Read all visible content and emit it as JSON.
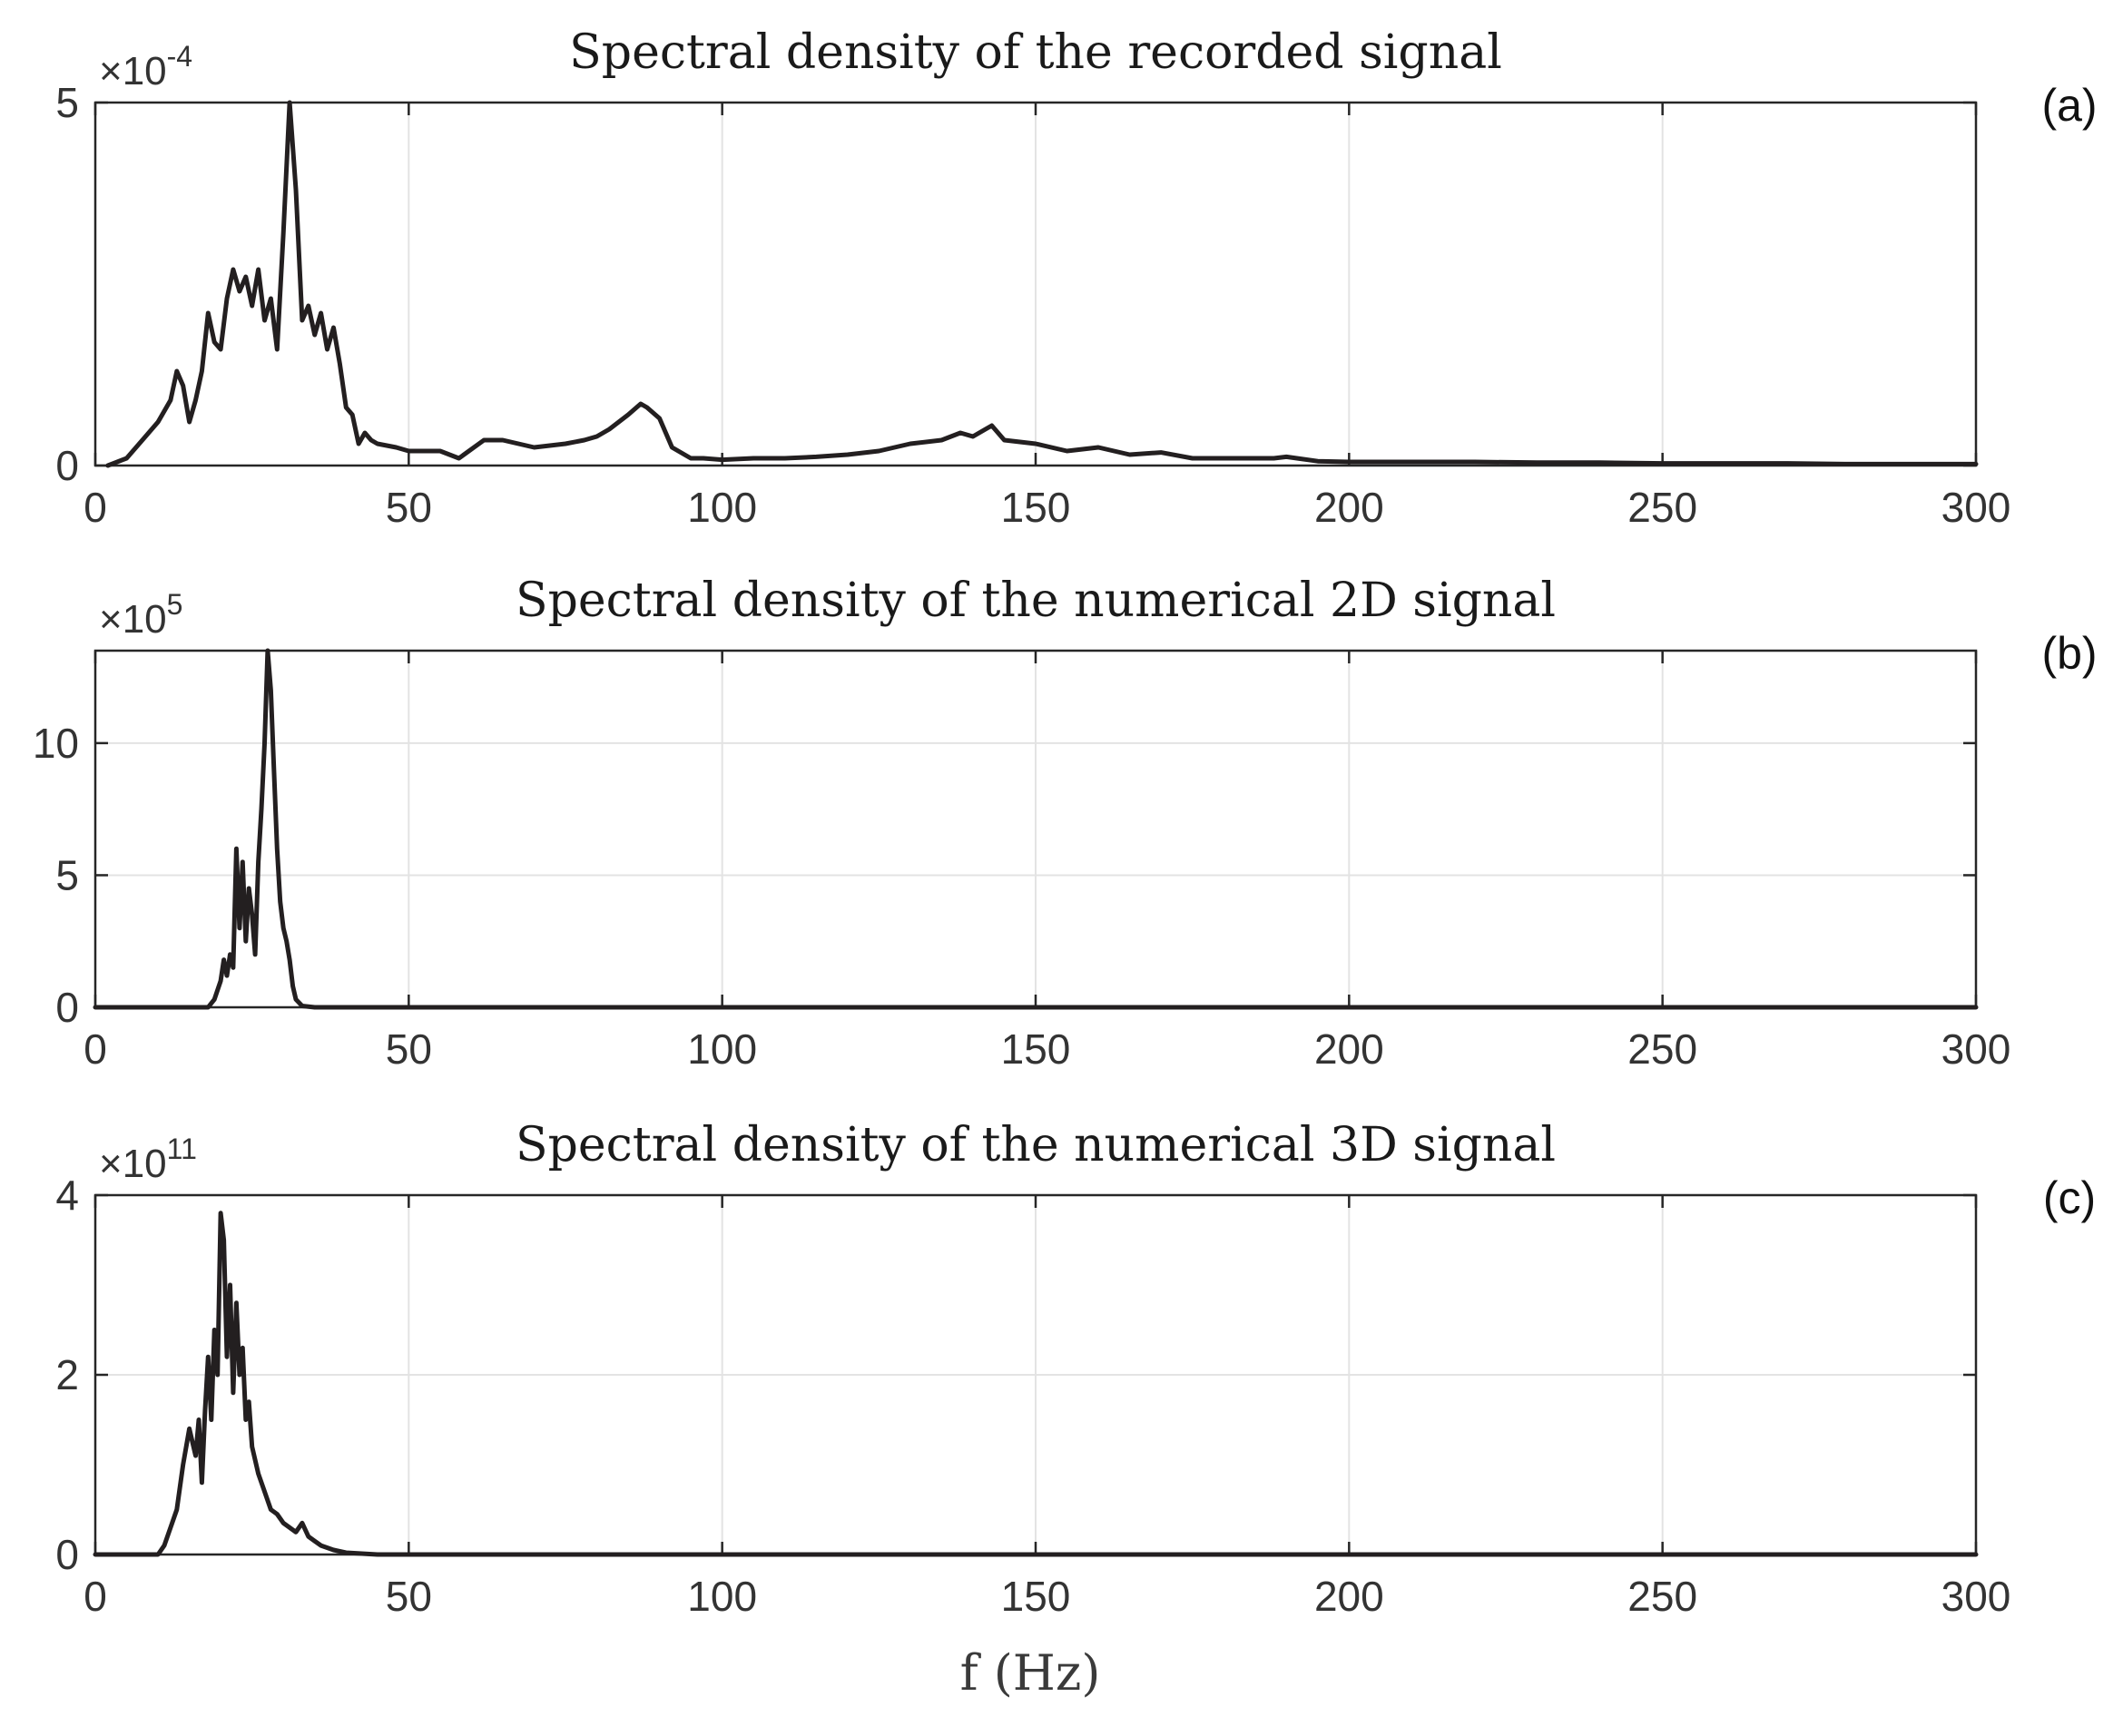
{
  "xlabel": "f (Hz)",
  "colors": {
    "line": "#231f20",
    "grid": "#e3e3e3",
    "axis": "#262626",
    "text": "#333333"
  },
  "chart_data": [
    {
      "type": "line",
      "panel_label": "(a)",
      "title": "Spectral density of the recorded signal",
      "xlabel": "",
      "ylabel": "",
      "xlim": [
        0,
        300
      ],
      "ylim": [
        0,
        5
      ],
      "exponent_prefix": "×10",
      "exponent_power": "-4",
      "grid": true,
      "x_ticks": [
        "0",
        "50",
        "100",
        "150",
        "200",
        "250",
        "300"
      ],
      "y_ticks": [
        {
          "value": 0,
          "label": "0"
        },
        {
          "value": 5,
          "label": "5"
        }
      ],
      "series": [
        {
          "name": "recorded",
          "x": [
            2,
            5,
            8,
            10,
            12,
            13,
            14,
            15,
            16,
            17,
            18,
            19,
            20,
            21,
            22,
            23,
            24,
            25,
            26,
            27,
            28,
            29,
            30,
            31,
            32,
            33,
            34,
            35,
            36,
            37,
            38,
            39,
            40,
            41,
            42,
            43,
            44,
            45,
            48,
            50,
            55,
            58,
            62,
            65,
            70,
            75,
            78,
            80,
            82,
            85,
            87,
            88,
            90,
            92,
            95,
            97,
            100,
            105,
            110,
            115,
            120,
            125,
            130,
            135,
            138,
            140,
            142,
            143,
            145,
            150,
            155,
            160,
            165,
            170,
            175,
            180,
            185,
            188,
            190,
            195,
            200,
            210,
            220,
            230,
            240,
            250,
            260,
            270,
            280,
            290,
            300
          ],
          "values": [
            0.0,
            0.1,
            0.4,
            0.6,
            0.9,
            1.3,
            1.1,
            0.6,
            0.9,
            1.3,
            2.1,
            1.7,
            1.6,
            2.3,
            2.7,
            2.4,
            2.6,
            2.2,
            2.7,
            2.0,
            2.3,
            1.6,
            3.2,
            5.0,
            3.8,
            2.0,
            2.2,
            1.8,
            2.1,
            1.6,
            1.9,
            1.4,
            0.8,
            0.7,
            0.3,
            0.45,
            0.35,
            0.3,
            0.25,
            0.2,
            0.2,
            0.1,
            0.35,
            0.35,
            0.25,
            0.3,
            0.35,
            0.4,
            0.5,
            0.7,
            0.85,
            0.8,
            0.65,
            0.25,
            0.1,
            0.1,
            0.08,
            0.1,
            0.1,
            0.12,
            0.15,
            0.2,
            0.3,
            0.35,
            0.45,
            0.4,
            0.5,
            0.55,
            0.35,
            0.3,
            0.2,
            0.25,
            0.15,
            0.18,
            0.1,
            0.1,
            0.1,
            0.1,
            0.12,
            0.06,
            0.05,
            0.05,
            0.05,
            0.04,
            0.04,
            0.03,
            0.03,
            0.03,
            0.02,
            0.02,
            0.02
          ]
        }
      ]
    },
    {
      "type": "line",
      "panel_label": "(b)",
      "title": "Spectral density of the numerical 2D signal",
      "xlabel": "",
      "ylabel": "",
      "xlim": [
        0,
        300
      ],
      "ylim": [
        0,
        13.5
      ],
      "exponent_prefix": "×10",
      "exponent_power": "5",
      "grid": true,
      "x_ticks": [
        "0",
        "50",
        "100",
        "150",
        "200",
        "250",
        "300"
      ],
      "y_ticks": [
        {
          "value": 0,
          "label": "0"
        },
        {
          "value": 5,
          "label": "5"
        },
        {
          "value": 10,
          "label": "10"
        }
      ],
      "series": [
        {
          "name": "numerical 2D",
          "x": [
            0,
            18,
            19,
            20,
            20.5,
            21,
            21.5,
            22,
            22.5,
            23,
            23.5,
            24,
            24.5,
            25,
            25.5,
            26,
            26.5,
            27,
            27.5,
            28,
            28.5,
            29,
            29.5,
            30,
            30.5,
            31,
            31.5,
            32,
            33,
            35,
            300
          ],
          "values": [
            0,
            0,
            0.3,
            1.0,
            1.8,
            1.2,
            2.0,
            1.5,
            6.0,
            3.0,
            5.5,
            2.5,
            4.5,
            3.5,
            2.0,
            5.5,
            7.5,
            10.0,
            13.5,
            12.0,
            9.0,
            6.0,
            4.0,
            3.0,
            2.5,
            1.8,
            0.8,
            0.3,
            0.05,
            0,
            0
          ]
        }
      ]
    },
    {
      "type": "line",
      "panel_label": "(c)",
      "title": "Spectral density of the numerical 3D signal",
      "xlabel": "f (Hz)",
      "ylabel": "",
      "xlim": [
        0,
        300
      ],
      "ylim": [
        0,
        4
      ],
      "exponent_prefix": "×10",
      "exponent_power": "11",
      "grid": true,
      "x_ticks": [
        "0",
        "50",
        "100",
        "150",
        "200",
        "250",
        "300"
      ],
      "y_ticks": [
        {
          "value": 0,
          "label": "0"
        },
        {
          "value": 2,
          "label": "2"
        },
        {
          "value": 4,
          "label": "4"
        }
      ],
      "series": [
        {
          "name": "numerical 3D",
          "x": [
            0,
            10,
            11,
            12,
            13,
            14,
            15,
            16,
            16.5,
            17,
            17.5,
            18,
            18.5,
            19,
            19.5,
            20,
            20.5,
            21,
            21.5,
            22,
            22.5,
            23,
            23.5,
            24,
            24.5,
            25,
            26,
            27,
            28,
            29,
            30,
            31,
            32,
            33,
            34,
            35,
            36,
            38,
            40,
            45,
            50,
            300
          ],
          "values": [
            0,
            0,
            0.1,
            0.3,
            0.5,
            1.0,
            1.4,
            1.1,
            1.5,
            0.8,
            1.6,
            2.2,
            1.5,
            2.5,
            2.0,
            3.8,
            3.5,
            2.2,
            3.0,
            1.8,
            2.8,
            2.0,
            2.3,
            1.5,
            1.7,
            1.2,
            0.9,
            0.7,
            0.5,
            0.45,
            0.35,
            0.3,
            0.25,
            0.35,
            0.2,
            0.15,
            0.1,
            0.05,
            0.02,
            0,
            0,
            0
          ]
        }
      ]
    }
  ]
}
